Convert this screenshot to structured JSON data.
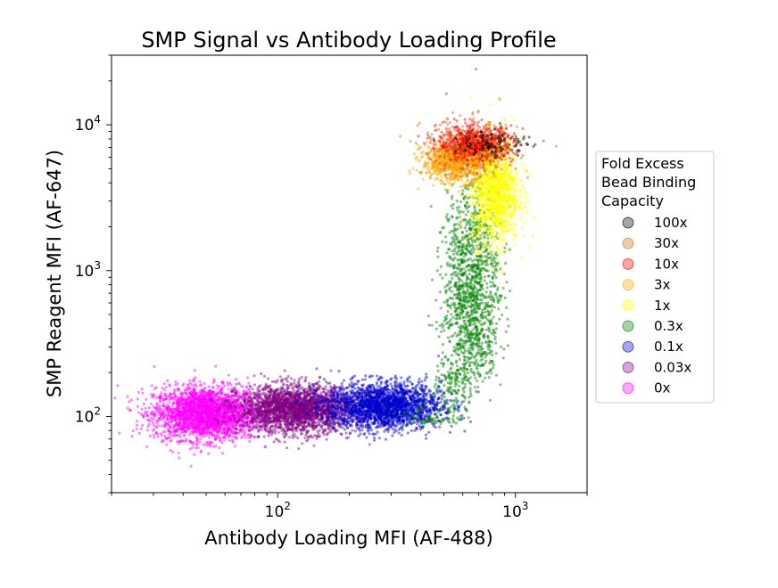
{
  "chart_data": {
    "type": "scatter",
    "title": "SMP Signal vs Antibody Loading Profile",
    "xlabel": "Antibody Loading MFI (AF-488)",
    "ylabel": "SMP Reagent MFI (AF-647)",
    "xscale": "log",
    "yscale": "log",
    "xlim": [
      20,
      2000
    ],
    "ylim": [
      30,
      30000
    ],
    "xticks": [
      {
        "value": 100,
        "base": "10",
        "exp": "2"
      },
      {
        "value": 1000,
        "base": "10",
        "exp": "3"
      }
    ],
    "yticks": [
      {
        "value": 100,
        "base": "10",
        "exp": "2"
      },
      {
        "value": 1000,
        "base": "10",
        "exp": "3"
      },
      {
        "value": 10000,
        "base": "10",
        "exp": "4"
      }
    ],
    "grid": false,
    "legend": {
      "title": [
        "Fold Excess",
        "Bead Binding",
        "Capacity"
      ],
      "placement": "outside-right"
    },
    "series": [
      {
        "name": "0x",
        "color": "#ff00ff",
        "center": [
          50,
          105
        ],
        "spread": [
          0.11,
          0.09
        ],
        "density": 2600
      },
      {
        "name": "0.03x",
        "color": "#800080",
        "center": [
          120,
          112
        ],
        "spread": [
          0.12,
          0.08
        ],
        "density": 2400
      },
      {
        "name": "0.1x",
        "color": "#0000cc",
        "center": [
          280,
          118
        ],
        "spread": [
          0.12,
          0.08
        ],
        "density": 2200
      },
      {
        "name": "0.3x",
        "color": "#008000",
        "center": [
          650,
          600
        ],
        "spread": [
          0.06,
          0.45
        ],
        "density": 1600
      },
      {
        "name": "1x",
        "color": "#ffff00",
        "center": [
          820,
          3500
        ],
        "spread": [
          0.05,
          0.18
        ],
        "density": 1400
      },
      {
        "name": "3x",
        "color": "#ffa500",
        "center": [
          560,
          5600
        ],
        "spread": [
          0.07,
          0.07
        ],
        "density": 900
      },
      {
        "name": "10x",
        "color": "#ff0000",
        "center": [
          680,
          7400
        ],
        "spread": [
          0.08,
          0.06
        ],
        "density": 700
      },
      {
        "name": "30x",
        "color": "#d2691e",
        "center": [
          650,
          7000
        ],
        "spread": [
          0.1,
          0.1
        ],
        "density": 250
      },
      {
        "name": "100x",
        "color": "#000000",
        "center": [
          800,
          7600
        ],
        "spread": [
          0.08,
          0.05
        ],
        "density": 120
      }
    ]
  }
}
